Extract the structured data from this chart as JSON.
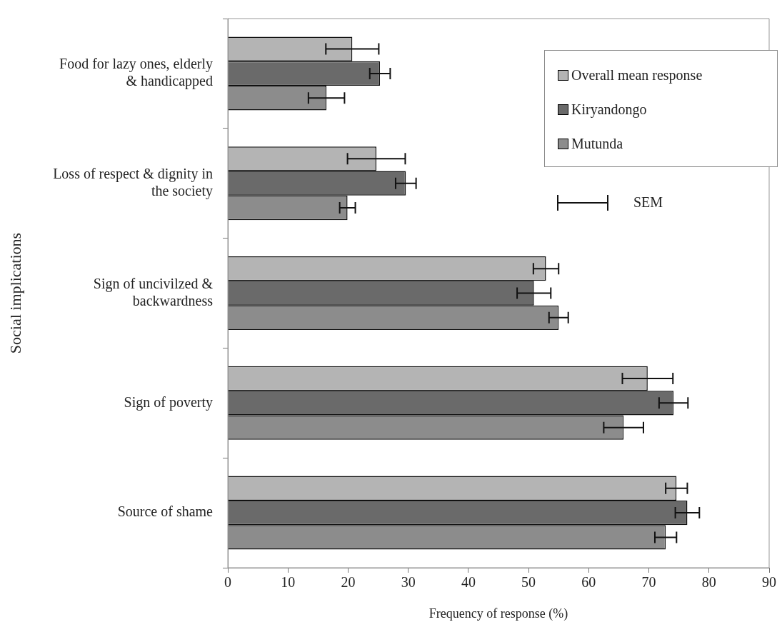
{
  "chart_data": {
    "type": "bar",
    "orientation": "horizontal",
    "xlabel": "Frequency of response (%)",
    "ylabel": "Social implications",
    "categories": [
      "Food for lazy ones, elderly & handicapped",
      "Loss of respect & dignity in the society",
      "Sign of uncivilzed & backwardness",
      "Sign of poverty",
      "Source of shame"
    ],
    "series": [
      {
        "name": "Overall mean response",
        "color": "#b4b4b4",
        "values": [
          20.7,
          24.7,
          52.9,
          69.8,
          74.6
        ],
        "errors": [
          4.4,
          4.8,
          2.1,
          4.2,
          1.8
        ]
      },
      {
        "name": "Kiryandongo",
        "color": "#6a6a6a",
        "values": [
          25.3,
          29.6,
          50.9,
          74.1,
          76.4
        ],
        "errors": [
          1.7,
          1.7,
          2.8,
          2.4,
          2.0
        ]
      },
      {
        "name": "Mutunda",
        "color": "#8c8c8c",
        "values": [
          16.4,
          19.9,
          55.0,
          65.8,
          72.8
        ],
        "errors": [
          3.0,
          1.3,
          1.6,
          3.3,
          1.8
        ]
      }
    ],
    "xlim": [
      0,
      90
    ],
    "xticks": [
      0,
      10,
      20,
      30,
      40,
      50,
      60,
      70,
      80,
      90
    ],
    "grid": false,
    "legend": "top right",
    "annotations": [
      "SEM"
    ]
  }
}
